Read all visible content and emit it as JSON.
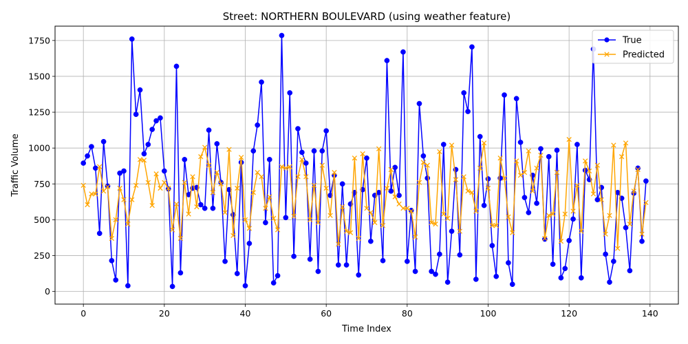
{
  "chart_data": {
    "type": "line",
    "title": "Street: NORTHERN BOULEVARD (using weather feature)",
    "xlabel": "Time Index",
    "ylabel": "Traffic Volume",
    "xlim": [
      -7,
      147
    ],
    "ylim": [
      -88,
      1850
    ],
    "xticks": [
      0,
      20,
      40,
      60,
      80,
      100,
      120,
      140
    ],
    "yticks": [
      0,
      250,
      500,
      750,
      1000,
      1250,
      1500,
      1750
    ],
    "grid": true,
    "legend_position": "top-right",
    "series": [
      {
        "name": "True",
        "color": "#0000ff",
        "marker": "circle",
        "values": [
          895,
          945,
          1010,
          860,
          405,
          1045,
          735,
          215,
          80,
          825,
          840,
          40,
          1760,
          1235,
          1405,
          960,
          1025,
          1130,
          1190,
          1210,
          840,
          715,
          35,
          1570,
          130,
          920,
          675,
          720,
          725,
          605,
          580,
          1125,
          580,
          1030,
          760,
          210,
          710,
          535,
          125,
          900,
          40,
          335,
          980,
          1160,
          1460,
          480,
          920,
          60,
          110,
          1785,
          515,
          1385,
          245,
          1135,
          970,
          895,
          225,
          980,
          140,
          980,
          1120,
          670,
          810,
          185,
          750,
          185,
          610,
          690,
          115,
          710,
          930,
          350,
          670,
          690,
          215,
          1610,
          700,
          865,
          670,
          1670,
          210,
          565,
          140,
          1310,
          945,
          790,
          140,
          120,
          260,
          1025,
          65,
          420,
          850,
          255,
          1385,
          1255,
          1705,
          85,
          1080,
          600,
          785,
          320,
          105,
          790,
          1370,
          200,
          50,
          1345,
          1040,
          655,
          550,
          810,
          615,
          995,
          365,
          940,
          190,
          985,
          95,
          160,
          355,
          505,
          1025,
          95,
          845,
          780,
          1690,
          640,
          725,
          260,
          65,
          210,
          690,
          650,
          445,
          145,
          685,
          860,
          350,
          770
        ]
      },
      {
        "name": "Predicted",
        "color": "#ffa500",
        "marker": "x",
        "values": [
          740,
          605,
          680,
          680,
          870,
          700,
          730,
          370,
          500,
          720,
          640,
          470,
          640,
          740,
          920,
          915,
          760,
          600,
          820,
          720,
          760,
          720,
          430,
          610,
          370,
          760,
          540,
          800,
          590,
          940,
          1005,
          880,
          690,
          830,
          750,
          550,
          990,
          390,
          720,
          935,
          500,
          440,
          690,
          830,
          800,
          580,
          660,
          510,
          430,
          870,
          860,
          870,
          525,
          800,
          920,
          800,
          500,
          740,
          480,
          880,
          720,
          530,
          830,
          330,
          590,
          420,
          410,
          930,
          370,
          960,
          580,
          550,
          480,
          995,
          460,
          720,
          850,
          660,
          610,
          580,
          580,
          560,
          380,
          760,
          900,
          880,
          480,
          470,
          975,
          540,
          510,
          1020,
          780,
          420,
          800,
          700,
          690,
          560,
          860,
          1035,
          720,
          460,
          460,
          930,
          790,
          520,
          410,
          910,
          810,
          830,
          980,
          700,
          860,
          950,
          370,
          530,
          540,
          830,
          350,
          540,
          1060,
          560,
          740,
          420,
          910,
          840,
          680,
          880,
          640,
          400,
          530,
          1020,
          300,
          940,
          1035,
          470,
          700,
          850,
          400,
          620
        ]
      }
    ]
  }
}
